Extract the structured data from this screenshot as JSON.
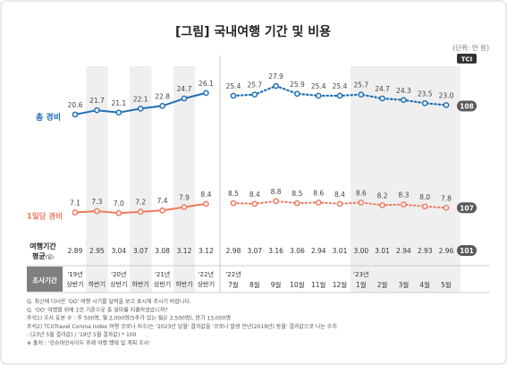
{
  "title": "[그림] 국내여행 기간 및 비용",
  "unit": "(단위: 만 원)",
  "tci_badge": "TCI",
  "colors": {
    "total": "#1f6fb5",
    "daily": "#ef7a5e",
    "tci_badge": "#595959",
    "shade": "#efefef",
    "dark_label": "#666666"
  },
  "chart_data": {
    "type": "line",
    "left_panel": {
      "categories": [
        "'19년 상반기",
        "하반기",
        "'20년 상반기",
        "하반기",
        "'21년 상반기",
        "하반기",
        "'22년 상반기"
      ],
      "category_lines": [
        [
          "'19년",
          "상반기"
        ],
        [
          "",
          "하반기"
        ],
        [
          "'20년",
          "상반기"
        ],
        [
          "",
          "하반기"
        ],
        [
          "'21년",
          "상반기"
        ],
        [
          "",
          "하반기"
        ],
        [
          "'22년",
          "상반기"
        ]
      ],
      "total_cost": [
        20.6,
        21.7,
        21.1,
        22.1,
        22.8,
        24.7,
        26.1
      ],
      "daily_cost": [
        7.1,
        7.3,
        7.0,
        7.2,
        7.4,
        7.9,
        8.4
      ],
      "duration": [
        2.89,
        2.95,
        3.04,
        3.07,
        3.08,
        3.12,
        3.12
      ]
    },
    "right_panel": {
      "categories": [
        "'22년 7월",
        "8월",
        "9월",
        "10월",
        "11월",
        "12월",
        "'23년 1월",
        "2월",
        "3월",
        "4월",
        "5월"
      ],
      "category_lines": [
        [
          "'22년",
          "7월"
        ],
        [
          "",
          "8월"
        ],
        [
          "",
          "9월"
        ],
        [
          "",
          "10월"
        ],
        [
          "",
          "11월"
        ],
        [
          "",
          "12월"
        ],
        [
          "'23년",
          "1월"
        ],
        [
          "",
          "2월"
        ],
        [
          "",
          "3월"
        ],
        [
          "",
          "4월"
        ],
        [
          "",
          "5월"
        ]
      ],
      "total_cost": [
        25.4,
        25.7,
        27.9,
        25.9,
        25.4,
        25.4,
        25.7,
        24.7,
        24.3,
        23.5,
        23.0
      ],
      "daily_cost": [
        8.5,
        8.4,
        8.8,
        8.5,
        8.6,
        8.4,
        8.6,
        8.2,
        8.3,
        8.0,
        7.8
      ],
      "duration": [
        2.98,
        3.07,
        3.16,
        3.06,
        2.94,
        3.01,
        3.0,
        3.01,
        2.94,
        2.93,
        2.96
      ]
    },
    "tci_index": {
      "total_cost": "108",
      "daily_cost": "107",
      "duration": "101"
    },
    "series_labels": {
      "total_cost": "총 경비",
      "daily_cost": "1일당 경비",
      "duration_line1": "여행기간",
      "duration_line2": "평균",
      "duration_unit": "(일)"
    },
    "period_header": "조사기간"
  },
  "footnotes": [
    "Q. 최근에 다녀온 'OO' 여행 시기를 달력을 보고 표시해 주시기 바랍니다.",
    "Q. 'OO' 여행을 위해 1인 기준으로 총 얼마를 지출하셨습니까?",
    "주석1) 조사 표본 수 : 주 500명, 월 2,000명(5주가 있는 월은 2,500명), 반기 13,000명",
    "주석2) TCI(Travel Corona Index 여행 코로나 지수)는 '2023년 당월' 결과값을 '코로나 발생 전년(2019년) 동월' 결과값으로 나눈 수치",
    "      : (23년 5월 결과값) / '19년 5월 결과값) * 100",
    "※ 출처 : '컨슈머인사이트 주례 여행 행태 및 계획 조사'"
  ]
}
